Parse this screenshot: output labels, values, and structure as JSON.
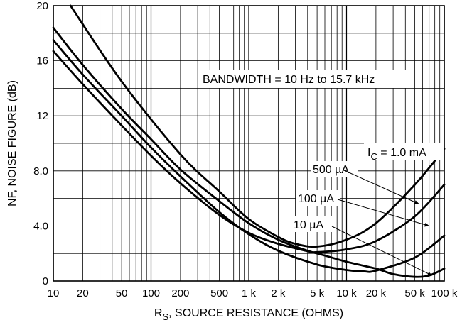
{
  "chart_data": {
    "type": "line",
    "title": "",
    "xlabel": "R",
    "xlabel_sub": "S",
    "xlabel_rest": ", SOURCE RESISTANCE (OHMS)",
    "ylabel": "NF, NOISE FIGURE (dB)",
    "x_scale": "log",
    "xlim": [
      10,
      100000
    ],
    "ylim": [
      0,
      20
    ],
    "grid": true,
    "x_ticks": [
      10,
      20,
      50,
      100,
      200,
      500,
      1000,
      2000,
      5000,
      10000,
      20000,
      50000,
      100000
    ],
    "x_tick_labels": [
      "10",
      "20",
      "50",
      "100",
      "200",
      "500",
      "1 k",
      "2 k",
      "5 k",
      "10 k",
      "20 k",
      "50 k",
      "100 k"
    ],
    "y_ticks": [
      0,
      4,
      8,
      12,
      16,
      20
    ],
    "y_tick_labels": [
      "0",
      "4.0",
      "8.0",
      "12",
      "16",
      "20"
    ],
    "annotation_bandwidth": "BANDWIDTH = 10 Hz to 15.7 kHz",
    "series": [
      {
        "name": "I_C = 1.0 mA",
        "label_main": "I",
        "label_sub": "C",
        "label_rest": " = 1.0 mA",
        "points": [
          [
            15,
            20
          ],
          [
            50,
            14.5
          ],
          [
            200,
            9.2
          ],
          [
            500,
            6.5
          ],
          [
            1000,
            4.5
          ],
          [
            2000,
            3.2
          ],
          [
            3000,
            2.7
          ],
          [
            5000,
            2.5
          ],
          [
            10000,
            3.0
          ],
          [
            20000,
            4.2
          ],
          [
            50000,
            7.0
          ],
          [
            100000,
            9.6
          ]
        ]
      },
      {
        "name": "500 µA",
        "label": "500 µA",
        "points": [
          [
            10,
            18.4
          ],
          [
            20,
            15.7
          ],
          [
            50,
            12.5
          ],
          [
            100,
            10.3
          ],
          [
            200,
            8.1
          ],
          [
            500,
            5.8
          ],
          [
            1000,
            4.2
          ],
          [
            2000,
            3.0
          ],
          [
            4000,
            2.2
          ],
          [
            5000,
            2.1
          ],
          [
            10000,
            2.3
          ],
          [
            20000,
            2.9
          ],
          [
            50000,
            4.7
          ],
          [
            100000,
            7.0
          ]
        ]
      },
      {
        "name": "100 µA",
        "label": "100 µA",
        "points": [
          [
            10,
            17.5
          ],
          [
            20,
            15.0
          ],
          [
            50,
            12.0
          ],
          [
            100,
            9.7
          ],
          [
            200,
            7.6
          ],
          [
            500,
            5.0
          ],
          [
            1000,
            3.4
          ],
          [
            2000,
            2.2
          ],
          [
            5000,
            1.2
          ],
          [
            10000,
            0.8
          ],
          [
            15000,
            0.7
          ],
          [
            20000,
            0.75
          ],
          [
            50000,
            1.7
          ],
          [
            100000,
            3.3
          ]
        ]
      },
      {
        "name": "10 µA",
        "label": "10 µA",
        "points": [
          [
            10,
            16.7
          ],
          [
            20,
            14.3
          ],
          [
            50,
            11.3
          ],
          [
            100,
            9.1
          ],
          [
            200,
            7.1
          ],
          [
            500,
            4.8
          ],
          [
            1000,
            3.5
          ],
          [
            2000,
            2.7
          ],
          [
            5000,
            2.0
          ],
          [
            10000,
            1.4
          ],
          [
            20000,
            0.9
          ],
          [
            30000,
            0.5
          ],
          [
            50000,
            0.3
          ],
          [
            70000,
            0.4
          ],
          [
            100000,
            0.9
          ]
        ]
      }
    ]
  }
}
